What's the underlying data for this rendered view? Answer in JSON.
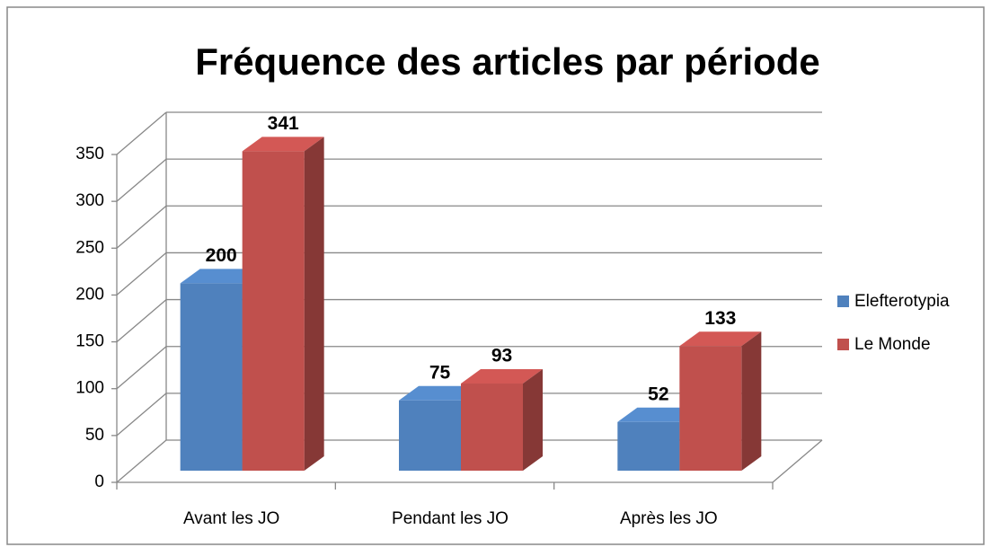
{
  "chart_data": {
    "type": "bar3d",
    "title": "Fréquence des articles par période",
    "categories": [
      "Avant les JO",
      "Pendant les JO",
      "Après les JO"
    ],
    "series": [
      {
        "name": "Elefterotypia",
        "color": "#4f81bd",
        "values": [
          200,
          75,
          52
        ]
      },
      {
        "name": "Le Monde",
        "color": "#c0504d",
        "values": [
          341,
          93,
          133
        ]
      }
    ],
    "ylim": [
      0,
      350
    ],
    "yticks": [
      0,
      50,
      100,
      150,
      200,
      250,
      300,
      350
    ],
    "grid": true,
    "legend": "right"
  }
}
